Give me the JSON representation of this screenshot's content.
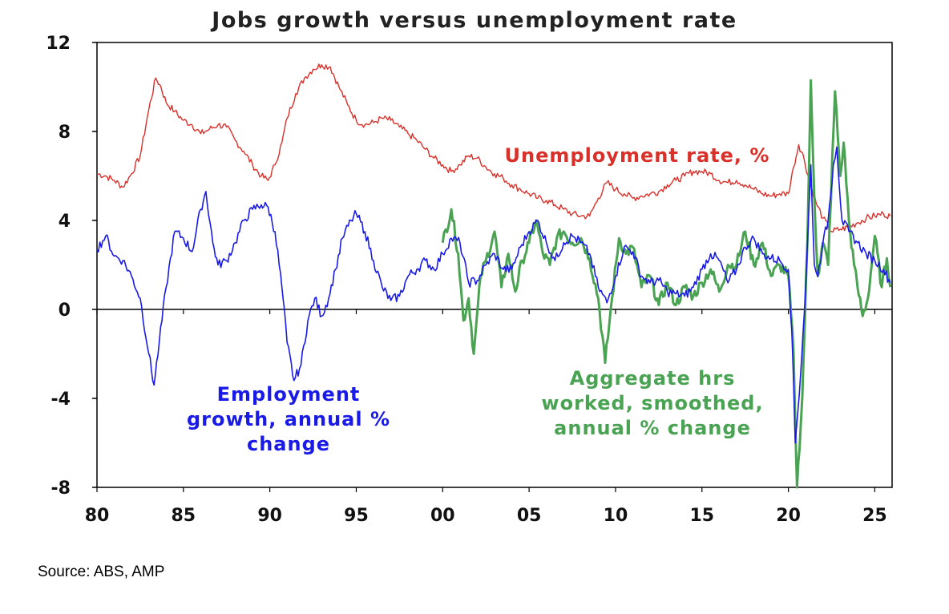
{
  "chart_data": {
    "type": "line",
    "title": "Jobs growth versus unemployment rate",
    "xlabel": "",
    "ylabel": "",
    "xlim": [
      1980,
      2026
    ],
    "ylim": [
      -8,
      12
    ],
    "x_ticks": [
      1980,
      1985,
      1990,
      1995,
      2000,
      2005,
      2010,
      2015,
      2020,
      2025
    ],
    "x_tick_labels": [
      "80",
      "85",
      "90",
      "95",
      "00",
      "05",
      "10",
      "15",
      "20",
      "25"
    ],
    "y_ticks": [
      -8,
      -4,
      0,
      4,
      8,
      12
    ],
    "y_tick_labels": [
      "-8",
      "-4",
      "0",
      "4",
      "8",
      "12"
    ],
    "grid": false,
    "legend": "none",
    "annotations": [
      {
        "lines": [
          "Unemployment rate, %"
        ],
        "color": "#d9302a"
      },
      {
        "lines": [
          "Employment",
          "growth, annual %",
          "change"
        ],
        "color": "#1a1ae6"
      },
      {
        "lines": [
          "Aggregate hrs",
          "worked, smoothed,",
          "annual %  change"
        ],
        "color": "#4aa353"
      }
    ],
    "series": [
      {
        "name": "Unemployment rate, %",
        "color": "#d9302a",
        "points": [
          [
            1980.0,
            6.1
          ],
          [
            1980.5,
            6.0
          ],
          [
            1981.0,
            5.8
          ],
          [
            1981.5,
            5.5
          ],
          [
            1982.0,
            6.1
          ],
          [
            1982.5,
            6.9
          ],
          [
            1983.0,
            9.0
          ],
          [
            1983.4,
            10.4
          ],
          [
            1983.7,
            10.0
          ],
          [
            1984.0,
            9.3
          ],
          [
            1984.5,
            8.9
          ],
          [
            1985.0,
            8.5
          ],
          [
            1985.5,
            8.3
          ],
          [
            1986.0,
            7.9
          ],
          [
            1986.5,
            8.1
          ],
          [
            1987.0,
            8.3
          ],
          [
            1987.5,
            8.2
          ],
          [
            1988.0,
            7.6
          ],
          [
            1988.5,
            7.1
          ],
          [
            1989.0,
            6.5
          ],
          [
            1989.5,
            6.0
          ],
          [
            1989.9,
            5.8
          ],
          [
            1990.3,
            6.5
          ],
          [
            1990.7,
            7.5
          ],
          [
            1991.0,
            8.6
          ],
          [
            1991.5,
            9.7
          ],
          [
            1992.0,
            10.4
          ],
          [
            1992.5,
            10.8
          ],
          [
            1993.0,
            11.0
          ],
          [
            1993.5,
            10.9
          ],
          [
            1994.0,
            10.0
          ],
          [
            1994.5,
            9.2
          ],
          [
            1995.0,
            8.5
          ],
          [
            1995.5,
            8.3
          ],
          [
            1996.0,
            8.4
          ],
          [
            1996.5,
            8.6
          ],
          [
            1997.0,
            8.5
          ],
          [
            1997.5,
            8.2
          ],
          [
            1998.0,
            7.9
          ],
          [
            1998.5,
            7.6
          ],
          [
            1999.0,
            7.2
          ],
          [
            1999.5,
            6.8
          ],
          [
            2000.0,
            6.5
          ],
          [
            2000.5,
            6.2
          ],
          [
            2001.0,
            6.5
          ],
          [
            2001.5,
            6.9
          ],
          [
            2002.0,
            6.8
          ],
          [
            2002.5,
            6.4
          ],
          [
            2003.0,
            6.1
          ],
          [
            2003.5,
            5.9
          ],
          [
            2004.0,
            5.6
          ],
          [
            2004.5,
            5.4
          ],
          [
            2005.0,
            5.2
          ],
          [
            2005.5,
            5.0
          ],
          [
            2006.0,
            4.9
          ],
          [
            2006.5,
            4.7
          ],
          [
            2007.0,
            4.5
          ],
          [
            2007.5,
            4.3
          ],
          [
            2008.0,
            4.2
          ],
          [
            2008.5,
            4.2
          ],
          [
            2009.0,
            5.0
          ],
          [
            2009.5,
            5.7
          ],
          [
            2010.0,
            5.4
          ],
          [
            2010.5,
            5.2
          ],
          [
            2011.0,
            5.0
          ],
          [
            2011.5,
            5.1
          ],
          [
            2012.0,
            5.2
          ],
          [
            2012.5,
            5.3
          ],
          [
            2013.0,
            5.6
          ],
          [
            2013.5,
            5.8
          ],
          [
            2014.0,
            6.0
          ],
          [
            2014.5,
            6.2
          ],
          [
            2015.0,
            6.2
          ],
          [
            2015.5,
            6.1
          ],
          [
            2016.0,
            5.8
          ],
          [
            2016.5,
            5.7
          ],
          [
            2017.0,
            5.8
          ],
          [
            2017.5,
            5.6
          ],
          [
            2018.0,
            5.4
          ],
          [
            2018.5,
            5.2
          ],
          [
            2019.0,
            5.1
          ],
          [
            2019.5,
            5.2
          ],
          [
            2020.0,
            5.2
          ],
          [
            2020.3,
            6.4
          ],
          [
            2020.6,
            7.4
          ],
          [
            2020.9,
            6.8
          ],
          [
            2021.2,
            5.8
          ],
          [
            2021.6,
            4.8
          ],
          [
            2022.0,
            4.1
          ],
          [
            2022.5,
            3.5
          ],
          [
            2023.0,
            3.6
          ],
          [
            2023.5,
            3.7
          ],
          [
            2024.0,
            3.9
          ],
          [
            2024.5,
            4.1
          ],
          [
            2025.0,
            4.2
          ],
          [
            2025.5,
            4.3
          ],
          [
            2025.9,
            4.2
          ]
        ]
      },
      {
        "name": "Employment growth, annual % change",
        "color": "#1a1ae6",
        "points": [
          [
            1980.0,
            2.7
          ],
          [
            1980.5,
            3.3
          ],
          [
            1981.0,
            2.4
          ],
          [
            1981.5,
            2.2
          ],
          [
            1982.0,
            1.5
          ],
          [
            1982.5,
            0.5
          ],
          [
            1983.0,
            -2.0
          ],
          [
            1983.3,
            -3.4
          ],
          [
            1983.6,
            -1.5
          ],
          [
            1984.0,
            1.0
          ],
          [
            1984.5,
            3.5
          ],
          [
            1985.0,
            3.2
          ],
          [
            1985.5,
            2.6
          ],
          [
            1986.0,
            4.5
          ],
          [
            1986.3,
            5.3
          ],
          [
            1986.7,
            3.0
          ],
          [
            1987.0,
            2.0
          ],
          [
            1987.5,
            2.2
          ],
          [
            1988.0,
            3.0
          ],
          [
            1988.5,
            4.0
          ],
          [
            1989.0,
            4.5
          ],
          [
            1989.5,
            4.7
          ],
          [
            1989.9,
            4.6
          ],
          [
            1990.3,
            3.5
          ],
          [
            1990.7,
            1.0
          ],
          [
            1991.0,
            -1.5
          ],
          [
            1991.4,
            -3.2
          ],
          [
            1991.8,
            -2.5
          ],
          [
            1992.2,
            -0.5
          ],
          [
            1992.6,
            0.5
          ],
          [
            1993.0,
            -0.3
          ],
          [
            1993.4,
            0.5
          ],
          [
            1993.8,
            1.8
          ],
          [
            1994.2,
            3.2
          ],
          [
            1994.7,
            4.0
          ],
          [
            1995.0,
            4.3
          ],
          [
            1995.5,
            3.5
          ],
          [
            1996.0,
            2.2
          ],
          [
            1996.5,
            1.0
          ],
          [
            1997.0,
            0.4
          ],
          [
            1997.5,
            0.6
          ],
          [
            1998.0,
            1.5
          ],
          [
            1998.5,
            1.8
          ],
          [
            1999.0,
            2.2
          ],
          [
            1999.5,
            1.8
          ],
          [
            2000.0,
            2.5
          ],
          [
            2000.5,
            3.2
          ],
          [
            2001.0,
            3.0
          ],
          [
            2001.5,
            1.2
          ],
          [
            2002.0,
            1.3
          ],
          [
            2002.5,
            2.0
          ],
          [
            2003.0,
            2.5
          ],
          [
            2003.5,
            1.8
          ],
          [
            2004.0,
            1.8
          ],
          [
            2004.5,
            2.8
          ],
          [
            2005.0,
            3.5
          ],
          [
            2005.5,
            4.0
          ],
          [
            2006.0,
            3.0
          ],
          [
            2006.5,
            2.2
          ],
          [
            2007.0,
            3.0
          ],
          [
            2007.5,
            3.3
          ],
          [
            2008.0,
            3.0
          ],
          [
            2008.5,
            2.5
          ],
          [
            2009.0,
            1.0
          ],
          [
            2009.5,
            0.3
          ],
          [
            2010.0,
            1.5
          ],
          [
            2010.5,
            2.8
          ],
          [
            2011.0,
            2.6
          ],
          [
            2011.5,
            1.5
          ],
          [
            2012.0,
            1.2
          ],
          [
            2012.5,
            1.3
          ],
          [
            2013.0,
            0.8
          ],
          [
            2013.5,
            0.7
          ],
          [
            2014.0,
            0.6
          ],
          [
            2014.5,
            1.0
          ],
          [
            2015.0,
            1.8
          ],
          [
            2015.5,
            2.5
          ],
          [
            2016.0,
            2.2
          ],
          [
            2016.5,
            1.2
          ],
          [
            2017.0,
            1.8
          ],
          [
            2017.5,
            2.8
          ],
          [
            2018.0,
            3.2
          ],
          [
            2018.5,
            2.5
          ],
          [
            2019.0,
            2.3
          ],
          [
            2019.5,
            2.2
          ],
          [
            2020.0,
            1.8
          ],
          [
            2020.2,
            -1.0
          ],
          [
            2020.4,
            -6.0
          ],
          [
            2020.7,
            -3.0
          ],
          [
            2021.0,
            1.0
          ],
          [
            2021.3,
            6.5
          ],
          [
            2021.5,
            2.0
          ],
          [
            2021.7,
            1.5
          ],
          [
            2022.0,
            3.0
          ],
          [
            2022.3,
            4.0
          ],
          [
            2022.6,
            6.5
          ],
          [
            2022.8,
            7.3
          ],
          [
            2023.1,
            4.0
          ],
          [
            2023.5,
            3.5
          ],
          [
            2024.0,
            3.0
          ],
          [
            2024.5,
            2.5
          ],
          [
            2025.0,
            2.2
          ],
          [
            2025.5,
            1.8
          ],
          [
            2025.9,
            1.2
          ]
        ]
      },
      {
        "name": "Aggregate hrs worked, smoothed, annual % change",
        "color": "#4aa353",
        "points": [
          [
            2000.0,
            3.0
          ],
          [
            2000.5,
            4.5
          ],
          [
            2000.9,
            2.5
          ],
          [
            2001.2,
            -0.5
          ],
          [
            2001.5,
            0.5
          ],
          [
            2001.8,
            -2.0
          ],
          [
            2002.2,
            1.5
          ],
          [
            2002.5,
            2.2
          ],
          [
            2003.0,
            3.5
          ],
          [
            2003.4,
            1.0
          ],
          [
            2003.8,
            2.5
          ],
          [
            2004.2,
            0.8
          ],
          [
            2004.6,
            2.2
          ],
          [
            2005.0,
            3.0
          ],
          [
            2005.4,
            4.0
          ],
          [
            2005.8,
            2.5
          ],
          [
            2006.2,
            2.0
          ],
          [
            2006.6,
            3.2
          ],
          [
            2007.0,
            3.5
          ],
          [
            2007.5,
            3.0
          ],
          [
            2008.0,
            3.2
          ],
          [
            2008.5,
            2.3
          ],
          [
            2009.0,
            0.5
          ],
          [
            2009.4,
            -2.4
          ],
          [
            2009.8,
            0.5
          ],
          [
            2010.2,
            3.2
          ],
          [
            2010.6,
            2.5
          ],
          [
            2011.0,
            2.8
          ],
          [
            2011.5,
            1.0
          ],
          [
            2012.0,
            1.5
          ],
          [
            2012.5,
            0.2
          ],
          [
            2013.0,
            1.2
          ],
          [
            2013.5,
            0.2
          ],
          [
            2014.0,
            1.0
          ],
          [
            2014.5,
            0.6
          ],
          [
            2015.0,
            1.2
          ],
          [
            2015.5,
            1.8
          ],
          [
            2016.0,
            0.8
          ],
          [
            2016.5,
            2.0
          ],
          [
            2017.0,
            2.0
          ],
          [
            2017.5,
            3.5
          ],
          [
            2018.0,
            2.0
          ],
          [
            2018.5,
            3.0
          ],
          [
            2019.0,
            1.5
          ],
          [
            2019.5,
            2.0
          ],
          [
            2020.0,
            1.5
          ],
          [
            2020.3,
            -2.0
          ],
          [
            2020.5,
            -8.0
          ],
          [
            2020.8,
            -4.0
          ],
          [
            2021.1,
            3.0
          ],
          [
            2021.3,
            10.3
          ],
          [
            2021.5,
            5.0
          ],
          [
            2021.7,
            1.5
          ],
          [
            2022.0,
            3.0
          ],
          [
            2022.3,
            2.0
          ],
          [
            2022.7,
            9.8
          ],
          [
            2023.0,
            6.0
          ],
          [
            2023.2,
            7.5
          ],
          [
            2023.5,
            4.0
          ],
          [
            2023.8,
            2.0
          ],
          [
            2024.0,
            1.0
          ],
          [
            2024.3,
            -0.3
          ],
          [
            2024.6,
            0.5
          ],
          [
            2025.0,
            3.3
          ],
          [
            2025.4,
            1.0
          ],
          [
            2025.7,
            2.3
          ],
          [
            2025.9,
            1.0
          ]
        ]
      }
    ]
  },
  "source": "Source: ABS, AMP"
}
